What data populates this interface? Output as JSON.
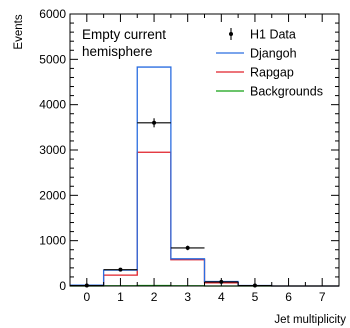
{
  "chart_data": {
    "type": "bar",
    "style": "step-histogram",
    "xlabel": "Jet multiplicity",
    "ylabel": "Events",
    "annotation": [
      "Empty current",
      "hemisphere"
    ],
    "xlim": [
      -0.5,
      7.5
    ],
    "ylim": [
      0,
      6000
    ],
    "x_ticks": [
      "0",
      "1",
      "2",
      "3",
      "4",
      "5",
      "6",
      "7"
    ],
    "y_ticks": [
      "0",
      "1000",
      "2000",
      "3000",
      "4000",
      "5000",
      "6000"
    ],
    "x_tick_values": [
      0,
      1,
      2,
      3,
      4,
      5,
      6,
      7
    ],
    "y_tick_values": [
      0,
      1000,
      2000,
      3000,
      4000,
      5000,
      6000
    ],
    "x_minor_step": 0.5,
    "y_minor_step": 200,
    "grid": false,
    "legend_position": "top-right",
    "categories": [
      0,
      1,
      2,
      3,
      4,
      5,
      6,
      7
    ],
    "series": [
      {
        "name": "H1 Data",
        "kind": "points",
        "color": "#000000",
        "values": [
          10,
          360,
          3600,
          840,
          90,
          10,
          0,
          0
        ],
        "errors": [
          5,
          30,
          100,
          50,
          15,
          5,
          0,
          0
        ]
      },
      {
        "name": "Djangoh",
        "kind": "step",
        "color": "#2a6de0",
        "values": [
          20,
          350,
          4830,
          600,
          100,
          10,
          0,
          0
        ]
      },
      {
        "name": "Rapgap",
        "kind": "step",
        "color": "#e0202a",
        "values": [
          15,
          240,
          2950,
          580,
          70,
          8,
          0,
          0
        ]
      },
      {
        "name": "Backgrounds",
        "kind": "step",
        "color": "#13a013",
        "values": [
          0,
          5,
          10,
          5,
          0,
          0,
          0,
          0
        ]
      }
    ]
  }
}
